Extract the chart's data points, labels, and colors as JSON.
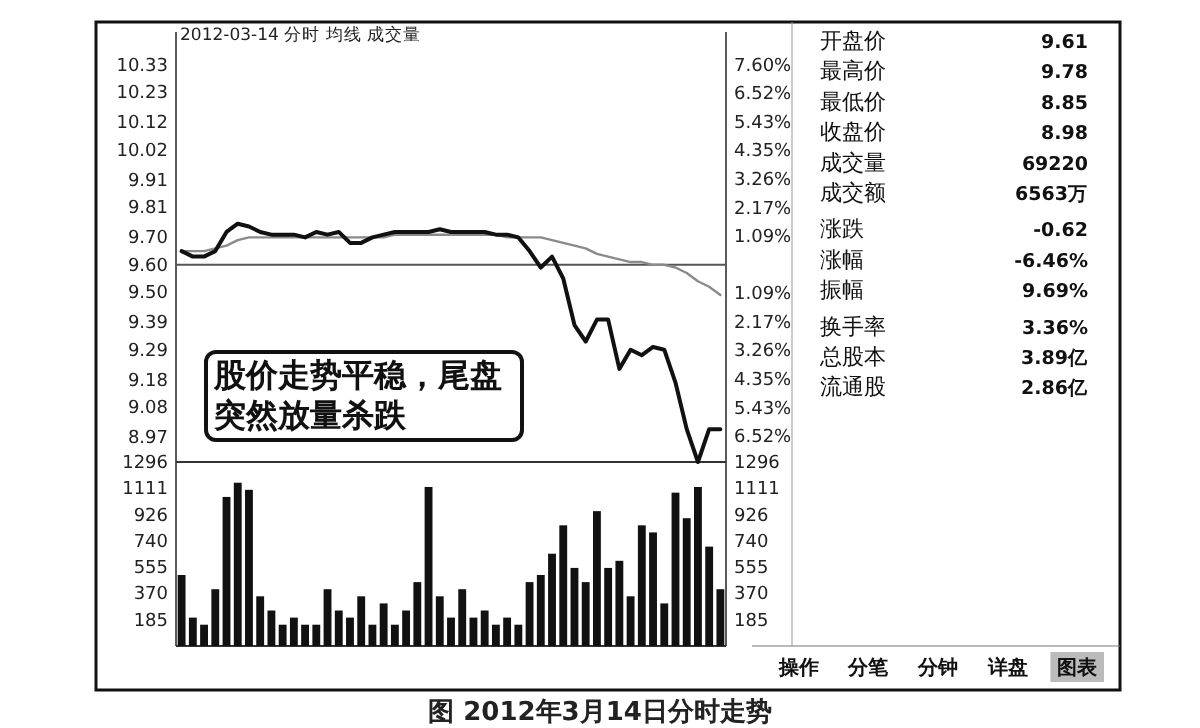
{
  "chart_data": [
    {
      "type": "line",
      "title": "2012-03-14 分时 均线 成交量",
      "categories": [
        null,
        null,
        null,
        null,
        null,
        null,
        null,
        null,
        null,
        null,
        null,
        null,
        null,
        null,
        null,
        null,
        null,
        null,
        null,
        null,
        null,
        null,
        null,
        null,
        null,
        null,
        null,
        null,
        null,
        null,
        null,
        null,
        null,
        null,
        null,
        null,
        null,
        null,
        null,
        null,
        null,
        null,
        null,
        null,
        null,
        null,
        null,
        null,
        null
      ],
      "series": [
        {
          "color": "#111111",
          "values": [
            9.65,
            9.63,
            9.63,
            9.65,
            9.72,
            9.75,
            9.74,
            9.72,
            9.71,
            9.71,
            9.71,
            9.7,
            9.72,
            9.71,
            9.72,
            9.68,
            9.68,
            9.7,
            9.71,
            9.72,
            9.72,
            9.72,
            9.72,
            9.73,
            9.72,
            9.72,
            9.72,
            9.72,
            9.71,
            9.71,
            9.7,
            9.65,
            9.59,
            9.63,
            9.55,
            9.38,
            9.32,
            9.4,
            9.4,
            9.22,
            9.29,
            9.27,
            9.3,
            9.29,
            9.17,
            9.0,
            8.88,
            9.0,
            9.0
          ]
        },
        {
          "color": "#8a8a8a",
          "values": [
            9.65,
            9.65,
            9.65,
            9.66,
            9.67,
            9.69,
            9.7,
            9.7,
            9.7,
            9.7,
            9.7,
            9.7,
            9.7,
            9.7,
            9.7,
            9.7,
            9.7,
            9.7,
            9.7,
            9.71,
            9.71,
            9.71,
            9.71,
            9.71,
            9.71,
            9.71,
            9.71,
            9.71,
            9.71,
            9.7,
            9.7,
            9.7,
            9.7,
            9.69,
            9.68,
            9.67,
            9.66,
            9.64,
            9.63,
            9.62,
            9.61,
            9.61,
            9.6,
            9.6,
            9.59,
            9.57,
            9.54,
            9.52,
            9.49
          ]
        }
      ],
      "ylim": [
        8.88,
        10.45
      ],
      "yticks": [
        10.33,
        10.23,
        10.12,
        10.02,
        9.91,
        9.81,
        {
          "value": 9.7,
          "label": "9.70"
        },
        {
          "value": 9.6,
          "label": "9.60"
        },
        {
          "value": 9.5,
          "label": "9.50"
        },
        9.39,
        9.29,
        9.18,
        9.08,
        8.97
      ],
      "y2lim": [
        -7.5,
        8.85
      ],
      "y2ticks": [
        {
          "value": 7.6,
          "label": "7.60%"
        },
        {
          "value": 6.52,
          "label": "6.52%"
        },
        {
          "value": 5.43,
          "label": "5.43%"
        },
        {
          "value": 4.35,
          "label": "4.35%"
        },
        {
          "value": 3.26,
          "label": "3.26%"
        },
        {
          "value": 2.17,
          "label": "2.17%"
        },
        {
          "value": 1.09,
          "label": "1.09%"
        },
        {
          "value": -1.09,
          "label": "1.09%"
        },
        {
          "value": -2.17,
          "label": "2.17%"
        },
        {
          "value": -3.26,
          "label": "3.26%"
        },
        {
          "value": -4.35,
          "label": "4.35%"
        },
        {
          "value": -5.43,
          "label": "5.43%"
        },
        {
          "value": -6.52,
          "label": "6.52%"
        }
      ],
      "ref_lines": [
        {
          "axis": "y",
          "value": 9.6,
          "color": "#555555"
        }
      ],
      "annotations": [
        "股价走势平稳，尾盘突然放量杀跌",
        "图 2012年3月14日分时走势"
      ]
    },
    {
      "type": "bar",
      "categories": [
        null,
        null,
        null,
        null,
        null,
        null,
        null,
        null,
        null,
        null,
        null,
        null,
        null,
        null,
        null,
        null,
        null,
        null,
        null,
        null,
        null,
        null,
        null,
        null,
        null,
        null,
        null,
        null,
        null,
        null,
        null,
        null,
        null,
        null,
        null,
        null,
        null,
        null,
        null,
        null,
        null,
        null,
        null,
        null,
        null,
        null,
        null,
        null,
        null
      ],
      "values": [
        500,
        200,
        150,
        400,
        1050,
        1150,
        1100,
        350,
        250,
        150,
        200,
        150,
        150,
        400,
        250,
        200,
        350,
        150,
        300,
        150,
        250,
        450,
        1120,
        350,
        200,
        400,
        200,
        250,
        150,
        200,
        150,
        450,
        500,
        650,
        850,
        550,
        450,
        950,
        550,
        600,
        350,
        850,
        800,
        300,
        1080,
        900,
        1120,
        700,
        400
      ],
      "color": "#111111",
      "ylim": [
        0,
        1296
      ],
      "yticks": [
        185,
        370,
        555,
        740,
        926,
        1111,
        1296
      ],
      "y2lim": [
        0,
        1296
      ],
      "y2ticks": [
        185,
        370,
        555,
        740,
        926,
        1111,
        1296
      ]
    },
    {
      "type": "other",
      "categories": [
        "开盘价",
        "最高价",
        "最低价",
        "收盘价",
        "成交量",
        "成交额",
        "涨跌",
        "涨幅",
        "振幅",
        "换手率",
        "总股本",
        "流通股"
      ],
      "value_labels": [
        "9.61",
        "9.78",
        "8.85",
        "8.98",
        "69220",
        "6563万",
        "-0.62",
        "-6.46%",
        "9.69%",
        "3.36%",
        "3.89亿",
        "2.86亿"
      ]
    },
    {
      "type": "other",
      "categories": [
        "操作",
        "分笔",
        "分钟",
        "详盘",
        "图表"
      ]
    }
  ]
}
